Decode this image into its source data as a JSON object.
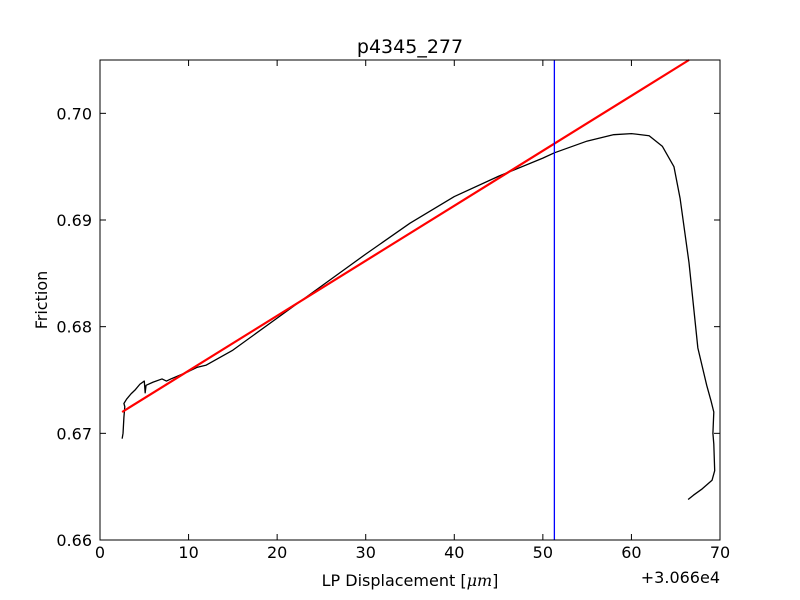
{
  "chart_data": {
    "type": "line",
    "title": "p4345_277",
    "xlabel": "LP Displacement [",
    "xlabel_unit": "μm",
    "xlabel_close": "]",
    "ylabel": "Friction",
    "x_offset_label": "+3.066e4",
    "xlim": [
      0,
      70
    ],
    "ylim": [
      0.66,
      0.705
    ],
    "x_ticks": [
      "0",
      "10",
      "20",
      "30",
      "40",
      "50",
      "60",
      "70"
    ],
    "y_ticks": [
      "0.66",
      "0.67",
      "0.68",
      "0.69",
      "0.70"
    ],
    "grid": false,
    "series": [
      {
        "color": "#000000",
        "x": [
          2.5,
          2.6,
          2.7,
          2.8,
          2.7,
          3.0,
          3.5,
          4.0,
          4.5,
          5.0,
          5.1,
          5.2,
          6.0,
          7.0,
          7.5,
          8.0,
          10.0,
          11.0,
          12.0,
          15.0,
          20.0,
          25.0,
          30.0,
          35.0,
          40.0,
          45.0,
          50.0,
          51.3,
          55.0,
          58.0,
          60.0,
          62.0,
          63.5,
          64.8,
          65.5,
          66.5,
          67.5,
          68.5,
          69.0,
          69.3,
          69.2,
          69.3,
          69.4,
          69.1,
          68.0,
          67.0,
          66.4
        ],
        "y": [
          0.6695,
          0.67,
          0.6715,
          0.6725,
          0.6728,
          0.6732,
          0.6737,
          0.6741,
          0.6746,
          0.6749,
          0.6738,
          0.6745,
          0.6748,
          0.6751,
          0.6749,
          0.6751,
          0.6758,
          0.6762,
          0.6764,
          0.6778,
          0.6808,
          0.6838,
          0.6868,
          0.6897,
          0.6922,
          0.6941,
          0.6958,
          0.6963,
          0.6974,
          0.698,
          0.6981,
          0.6979,
          0.6969,
          0.695,
          0.692,
          0.686,
          0.678,
          0.6745,
          0.673,
          0.672,
          0.67,
          0.669,
          0.6665,
          0.6656,
          0.6648,
          0.6642,
          0.6638
        ]
      },
      {
        "color": "#ff0000",
        "x": [
          2.5,
          66.5
        ],
        "y": [
          0.672,
          0.705
        ]
      },
      {
        "color": "#0000ff",
        "x": [
          51.3,
          51.3
        ],
        "y": [
          0.66,
          0.705
        ]
      }
    ]
  }
}
